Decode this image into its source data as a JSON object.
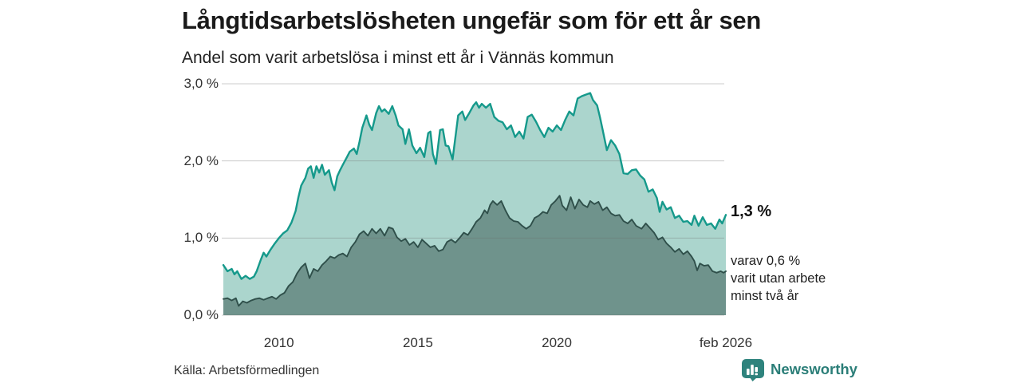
{
  "header": {
    "title": "Långtidsarbetslösheten ungefär som för ett år sen",
    "subtitle": "Andel som varit arbetslösa i minst ett år i Vännäs kommun"
  },
  "annotations": {
    "latest_total": "1,3 %",
    "latest_secondary": [
      "varav 0,6 %",
      "varit utan arbete",
      "minst två år"
    ]
  },
  "footer": {
    "source": "Källa: Arbetsförmedlingen",
    "brand": "Newsworthy"
  },
  "colors": {
    "series1_line": "#15998b",
    "series1_fill": "#abd5cd",
    "series2_line": "#2f4f4a",
    "series2_fill": "#6f938c",
    "grid": "#6e6e6e",
    "title": "#1a1a1a",
    "text": "#333333",
    "brand": "#2b7e78"
  },
  "chart_data": {
    "type": "area",
    "title": "Andel som varit arbetslösa i minst ett år i Vännäs kommun",
    "x_unit": "decimal year",
    "y_unit": "percent",
    "xlim": [
      2008.0,
      2026.083
    ],
    "ylim": [
      0,
      3.0
    ],
    "grid": true,
    "y_ticks": [
      {
        "label": "3,0 %",
        "value": 3
      },
      {
        "label": "2,0 %",
        "value": 2
      },
      {
        "label": "1,0 %",
        "value": 1
      },
      {
        "label": "0,0 %",
        "value": 0
      }
    ],
    "x_ticks": [
      {
        "label": "2010",
        "value": 2010
      },
      {
        "label": "2015",
        "value": 2015
      },
      {
        "label": "2020",
        "value": 2020
      },
      {
        "label": "feb 2026",
        "value": 2026.083
      }
    ],
    "series": [
      {
        "name": "Andel arbetslösa i minst ett år",
        "color_key": "series1",
        "last_value_label": "1,3 %",
        "points": [
          [
            2008.0,
            0.65
          ],
          [
            2008.15,
            0.57
          ],
          [
            2008.3,
            0.6
          ],
          [
            2008.4,
            0.53
          ],
          [
            2008.5,
            0.57
          ],
          [
            2008.65,
            0.47
          ],
          [
            2008.8,
            0.51
          ],
          [
            2008.95,
            0.47
          ],
          [
            2009.1,
            0.5
          ],
          [
            2009.2,
            0.57
          ],
          [
            2009.35,
            0.72
          ],
          [
            2009.45,
            0.81
          ],
          [
            2009.55,
            0.76
          ],
          [
            2009.7,
            0.85
          ],
          [
            2009.85,
            0.93
          ],
          [
            2010.0,
            1.0
          ],
          [
            2010.15,
            1.06
          ],
          [
            2010.3,
            1.1
          ],
          [
            2010.45,
            1.2
          ],
          [
            2010.6,
            1.35
          ],
          [
            2010.7,
            1.53
          ],
          [
            2010.8,
            1.68
          ],
          [
            2010.95,
            1.78
          ],
          [
            2011.05,
            1.9
          ],
          [
            2011.15,
            1.93
          ],
          [
            2011.25,
            1.78
          ],
          [
            2011.35,
            1.93
          ],
          [
            2011.45,
            1.85
          ],
          [
            2011.55,
            1.95
          ],
          [
            2011.65,
            1.82
          ],
          [
            2011.8,
            1.88
          ],
          [
            2011.9,
            1.72
          ],
          [
            2012.0,
            1.62
          ],
          [
            2012.1,
            1.8
          ],
          [
            2012.2,
            1.88
          ],
          [
            2012.3,
            1.95
          ],
          [
            2012.45,
            2.05
          ],
          [
            2012.55,
            2.12
          ],
          [
            2012.7,
            2.16
          ],
          [
            2012.8,
            2.09
          ],
          [
            2012.9,
            2.25
          ],
          [
            2013.0,
            2.43
          ],
          [
            2013.15,
            2.59
          ],
          [
            2013.25,
            2.47
          ],
          [
            2013.35,
            2.4
          ],
          [
            2013.5,
            2.62
          ],
          [
            2013.6,
            2.71
          ],
          [
            2013.7,
            2.64
          ],
          [
            2013.8,
            2.67
          ],
          [
            2013.95,
            2.61
          ],
          [
            2014.08,
            2.71
          ],
          [
            2014.2,
            2.59
          ],
          [
            2014.3,
            2.46
          ],
          [
            2014.45,
            2.41
          ],
          [
            2014.55,
            2.22
          ],
          [
            2014.68,
            2.41
          ],
          [
            2014.8,
            2.2
          ],
          [
            2014.95,
            2.1
          ],
          [
            2015.08,
            2.17
          ],
          [
            2015.23,
            2.05
          ],
          [
            2015.37,
            2.36
          ],
          [
            2015.45,
            2.38
          ],
          [
            2015.54,
            2.09
          ],
          [
            2015.65,
            1.96
          ],
          [
            2015.8,
            2.4
          ],
          [
            2015.9,
            2.41
          ],
          [
            2016.0,
            2.2
          ],
          [
            2016.1,
            2.19
          ],
          [
            2016.25,
            2.02
          ],
          [
            2016.45,
            2.59
          ],
          [
            2016.6,
            2.64
          ],
          [
            2016.7,
            2.53
          ],
          [
            2016.85,
            2.62
          ],
          [
            2017.0,
            2.72
          ],
          [
            2017.1,
            2.76
          ],
          [
            2017.2,
            2.69
          ],
          [
            2017.3,
            2.74
          ],
          [
            2017.45,
            2.69
          ],
          [
            2017.6,
            2.74
          ],
          [
            2017.75,
            2.57
          ],
          [
            2017.9,
            2.52
          ],
          [
            2018.05,
            2.5
          ],
          [
            2018.2,
            2.41
          ],
          [
            2018.35,
            2.46
          ],
          [
            2018.5,
            2.31
          ],
          [
            2018.65,
            2.38
          ],
          [
            2018.8,
            2.29
          ],
          [
            2018.95,
            2.57
          ],
          [
            2019.1,
            2.6
          ],
          [
            2019.25,
            2.51
          ],
          [
            2019.4,
            2.4
          ],
          [
            2019.55,
            2.31
          ],
          [
            2019.7,
            2.43
          ],
          [
            2019.85,
            2.38
          ],
          [
            2020.0,
            2.46
          ],
          [
            2020.15,
            2.4
          ],
          [
            2020.3,
            2.53
          ],
          [
            2020.45,
            2.64
          ],
          [
            2020.6,
            2.59
          ],
          [
            2020.75,
            2.81
          ],
          [
            2020.9,
            2.84
          ],
          [
            2021.05,
            2.86
          ],
          [
            2021.2,
            2.88
          ],
          [
            2021.3,
            2.79
          ],
          [
            2021.45,
            2.72
          ],
          [
            2021.55,
            2.57
          ],
          [
            2021.65,
            2.4
          ],
          [
            2021.8,
            2.14
          ],
          [
            2021.95,
            2.27
          ],
          [
            2022.1,
            2.2
          ],
          [
            2022.25,
            2.09
          ],
          [
            2022.4,
            1.84
          ],
          [
            2022.55,
            1.83
          ],
          [
            2022.7,
            1.88
          ],
          [
            2022.85,
            1.89
          ],
          [
            2023.0,
            1.81
          ],
          [
            2023.15,
            1.76
          ],
          [
            2023.3,
            1.6
          ],
          [
            2023.45,
            1.63
          ],
          [
            2023.6,
            1.52
          ],
          [
            2023.7,
            1.34
          ],
          [
            2023.8,
            1.47
          ],
          [
            2023.95,
            1.37
          ],
          [
            2024.1,
            1.4
          ],
          [
            2024.25,
            1.26
          ],
          [
            2024.4,
            1.29
          ],
          [
            2024.55,
            1.21
          ],
          [
            2024.7,
            1.22
          ],
          [
            2024.85,
            1.17
          ],
          [
            2024.95,
            1.29
          ],
          [
            2025.1,
            1.16
          ],
          [
            2025.25,
            1.27
          ],
          [
            2025.4,
            1.17
          ],
          [
            2025.55,
            1.19
          ],
          [
            2025.7,
            1.12
          ],
          [
            2025.85,
            1.24
          ],
          [
            2025.95,
            1.19
          ],
          [
            2026.083,
            1.3
          ]
        ]
      },
      {
        "name": "varav arbetslösa minst två år",
        "color_key": "series2",
        "last_value_label": "0,6 %",
        "points": [
          [
            2008.0,
            0.21
          ],
          [
            2008.15,
            0.22
          ],
          [
            2008.3,
            0.19
          ],
          [
            2008.45,
            0.22
          ],
          [
            2008.55,
            0.12
          ],
          [
            2008.7,
            0.18
          ],
          [
            2008.85,
            0.16
          ],
          [
            2009.0,
            0.19
          ],
          [
            2009.15,
            0.21
          ],
          [
            2009.3,
            0.22
          ],
          [
            2009.45,
            0.2
          ],
          [
            2009.6,
            0.22
          ],
          [
            2009.75,
            0.24
          ],
          [
            2009.9,
            0.21
          ],
          [
            2010.05,
            0.26
          ],
          [
            2010.2,
            0.29
          ],
          [
            2010.35,
            0.38
          ],
          [
            2010.5,
            0.43
          ],
          [
            2010.65,
            0.54
          ],
          [
            2010.8,
            0.62
          ],
          [
            2010.95,
            0.67
          ],
          [
            2011.1,
            0.48
          ],
          [
            2011.25,
            0.6
          ],
          [
            2011.4,
            0.57
          ],
          [
            2011.55,
            0.65
          ],
          [
            2011.7,
            0.7
          ],
          [
            2011.85,
            0.76
          ],
          [
            2012.0,
            0.74
          ],
          [
            2012.15,
            0.78
          ],
          [
            2012.3,
            0.8
          ],
          [
            2012.45,
            0.76
          ],
          [
            2012.6,
            0.88
          ],
          [
            2012.75,
            0.95
          ],
          [
            2012.9,
            1.05
          ],
          [
            2013.05,
            1.09
          ],
          [
            2013.2,
            1.03
          ],
          [
            2013.35,
            1.12
          ],
          [
            2013.5,
            1.06
          ],
          [
            2013.65,
            1.12
          ],
          [
            2013.8,
            1.03
          ],
          [
            2013.95,
            1.14
          ],
          [
            2014.1,
            1.12
          ],
          [
            2014.25,
            1.01
          ],
          [
            2014.4,
            0.96
          ],
          [
            2014.55,
            0.99
          ],
          [
            2014.7,
            0.91
          ],
          [
            2014.85,
            0.95
          ],
          [
            2015.0,
            0.88
          ],
          [
            2015.15,
            0.98
          ],
          [
            2015.3,
            0.93
          ],
          [
            2015.45,
            0.88
          ],
          [
            2015.6,
            0.9
          ],
          [
            2015.75,
            0.83
          ],
          [
            2015.9,
            0.85
          ],
          [
            2016.05,
            0.95
          ],
          [
            2016.2,
            0.98
          ],
          [
            2016.35,
            0.94
          ],
          [
            2016.5,
            1.0
          ],
          [
            2016.65,
            1.07
          ],
          [
            2016.8,
            1.04
          ],
          [
            2016.95,
            1.12
          ],
          [
            2017.1,
            1.21
          ],
          [
            2017.25,
            1.26
          ],
          [
            2017.4,
            1.36
          ],
          [
            2017.5,
            1.32
          ],
          [
            2017.6,
            1.43
          ],
          [
            2017.7,
            1.48
          ],
          [
            2017.85,
            1.43
          ],
          [
            2018.0,
            1.48
          ],
          [
            2018.15,
            1.36
          ],
          [
            2018.3,
            1.26
          ],
          [
            2018.45,
            1.22
          ],
          [
            2018.6,
            1.21
          ],
          [
            2018.75,
            1.16
          ],
          [
            2018.9,
            1.12
          ],
          [
            2019.05,
            1.16
          ],
          [
            2019.2,
            1.26
          ],
          [
            2019.35,
            1.29
          ],
          [
            2019.5,
            1.34
          ],
          [
            2019.65,
            1.32
          ],
          [
            2019.8,
            1.43
          ],
          [
            2019.95,
            1.48
          ],
          [
            2020.1,
            1.55
          ],
          [
            2020.2,
            1.42
          ],
          [
            2020.35,
            1.36
          ],
          [
            2020.5,
            1.53
          ],
          [
            2020.65,
            1.38
          ],
          [
            2020.8,
            1.5
          ],
          [
            2020.95,
            1.43
          ],
          [
            2021.1,
            1.4
          ],
          [
            2021.2,
            1.48
          ],
          [
            2021.35,
            1.44
          ],
          [
            2021.5,
            1.47
          ],
          [
            2021.65,
            1.36
          ],
          [
            2021.8,
            1.4
          ],
          [
            2021.95,
            1.32
          ],
          [
            2022.1,
            1.29
          ],
          [
            2022.25,
            1.3
          ],
          [
            2022.4,
            1.22
          ],
          [
            2022.55,
            1.19
          ],
          [
            2022.7,
            1.24
          ],
          [
            2022.85,
            1.16
          ],
          [
            2023.05,
            1.12
          ],
          [
            2023.2,
            1.19
          ],
          [
            2023.35,
            1.13
          ],
          [
            2023.5,
            1.07
          ],
          [
            2023.65,
            0.98
          ],
          [
            2023.8,
            1.01
          ],
          [
            2023.95,
            0.93
          ],
          [
            2024.1,
            0.88
          ],
          [
            2024.25,
            0.82
          ],
          [
            2024.4,
            0.86
          ],
          [
            2024.55,
            0.79
          ],
          [
            2024.7,
            0.83
          ],
          [
            2024.85,
            0.76
          ],
          [
            2024.95,
            0.7
          ],
          [
            2025.05,
            0.58
          ],
          [
            2025.15,
            0.67
          ],
          [
            2025.3,
            0.64
          ],
          [
            2025.45,
            0.65
          ],
          [
            2025.6,
            0.57
          ],
          [
            2025.75,
            0.55
          ],
          [
            2025.9,
            0.57
          ],
          [
            2026.0,
            0.55
          ],
          [
            2026.083,
            0.57
          ]
        ]
      }
    ]
  }
}
